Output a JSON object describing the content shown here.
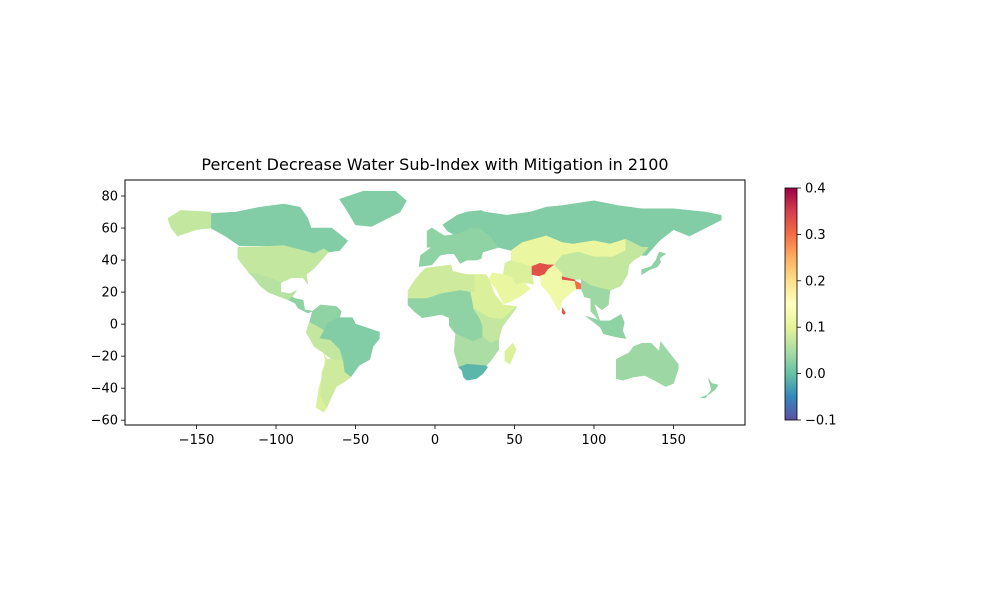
{
  "chart_data": {
    "type": "choropleth",
    "title": "Percent Decrease Water Sub-Index with Mitigation in 2100",
    "xlabel": "",
    "ylabel": "",
    "xlim": [
      -195,
      195
    ],
    "ylim": [
      -63,
      90
    ],
    "x_ticks": [
      -150,
      -100,
      -50,
      0,
      50,
      100,
      150
    ],
    "x_tick_labels": [
      "−150",
      "−100",
      "−50",
      "0",
      "50",
      "100",
      "150"
    ],
    "y_ticks": [
      80,
      60,
      40,
      20,
      0,
      -20,
      -40,
      -60
    ],
    "y_tick_labels": [
      "80",
      "60",
      "40",
      "20",
      "0",
      "−20",
      "−40",
      "−60"
    ],
    "colormap": "Spectral_r",
    "colorbar": {
      "range": [
        -0.1,
        0.4
      ],
      "ticks": [
        0.4,
        0.3,
        0.2,
        0.1,
        0.0,
        -0.1
      ],
      "tick_labels": [
        "0.4",
        "0.3",
        "0.2",
        "0.1",
        "0.0",
        "−0.1"
      ],
      "stops": [
        "#5e4fa2",
        "#3288bd",
        "#66c2a5",
        "#abdda4",
        "#e6f598",
        "#ffffbf",
        "#fee08b",
        "#fdae61",
        "#f46d43",
        "#d53e4f",
        "#9e0142"
      ]
    },
    "regions": [
      {
        "name": "Canada",
        "value": 0.02
      },
      {
        "name": "Alaska",
        "value": 0.07
      },
      {
        "name": "Greenland",
        "value": 0.02
      },
      {
        "name": "United States",
        "value": 0.07
      },
      {
        "name": "Mexico",
        "value": 0.06
      },
      {
        "name": "Central America",
        "value": 0.03
      },
      {
        "name": "Venezuela-Colombia",
        "value": 0.03
      },
      {
        "name": "Brazil",
        "value": 0.02
      },
      {
        "name": "Peru-Bolivia",
        "value": 0.07
      },
      {
        "name": "Chile",
        "value": 0.09
      },
      {
        "name": "Argentina",
        "value": 0.08
      },
      {
        "name": "Europe",
        "value": 0.03
      },
      {
        "name": "Scandinavia",
        "value": 0.02
      },
      {
        "name": "Russia",
        "value": 0.02
      },
      {
        "name": "North Africa",
        "value": 0.08
      },
      {
        "name": "Egypt-Sudan",
        "value": 0.09
      },
      {
        "name": "Arabian Peninsula",
        "value": 0.11
      },
      {
        "name": "Iran",
        "value": 0.09
      },
      {
        "name": "Central Asia",
        "value": 0.11
      },
      {
        "name": "Mongolia",
        "value": 0.11
      },
      {
        "name": "West Africa",
        "value": 0.03
      },
      {
        "name": "Central Africa",
        "value": 0.03
      },
      {
        "name": "East Africa",
        "value": 0.07
      },
      {
        "name": "Southern Africa",
        "value": 0.05
      },
      {
        "name": "South Africa",
        "value": -0.01
      },
      {
        "name": "Madagascar",
        "value": 0.09
      },
      {
        "name": "Afghanistan",
        "value": 0.33
      },
      {
        "name": "India",
        "value": 0.12
      },
      {
        "name": "Nepal",
        "value": 0.33
      },
      {
        "name": "Sri Lanka",
        "value": 0.33
      },
      {
        "name": "Bangladesh",
        "value": 0.3
      },
      {
        "name": "China",
        "value": 0.07
      },
      {
        "name": "Southeast Asia",
        "value": 0.04
      },
      {
        "name": "Japan",
        "value": 0.03
      },
      {
        "name": "Indonesia",
        "value": 0.03
      },
      {
        "name": "Australia",
        "value": 0.04
      },
      {
        "name": "New Zealand",
        "value": 0.03
      }
    ]
  }
}
